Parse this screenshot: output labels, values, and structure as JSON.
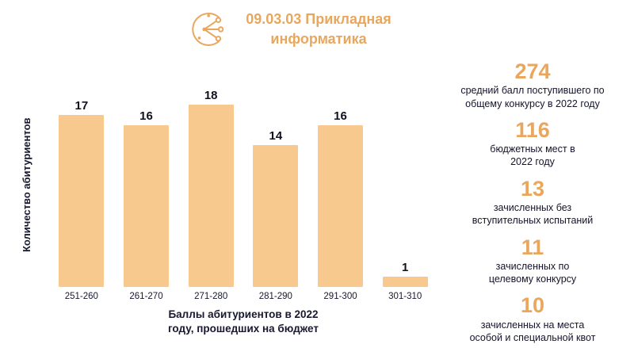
{
  "header": {
    "title": "09.03.03 Прикладная\nинформатика",
    "icon": "circuit-network-icon"
  },
  "chart_data": {
    "type": "bar",
    "categories": [
      "251-260",
      "261-270",
      "271-280",
      "281-290",
      "291-300",
      "301-310"
    ],
    "values": [
      17,
      16,
      18,
      14,
      16,
      1
    ],
    "xlabel": "Баллы абитуриентов в 2022\nгоду, прошедших на бюджет",
    "ylabel": "Количество абитуриентов",
    "ylim": [
      0,
      18
    ],
    "grid": false,
    "value_labels": true,
    "legend": "none",
    "bar_color": "#f8c98f"
  },
  "stats": [
    {
      "value": "274",
      "label": "средний балл поступившего по\nобщему конкурсу в 2022 году"
    },
    {
      "value": "116",
      "label": "бюджетных мест в\n2022 году"
    },
    {
      "value": "13",
      "label": "зачисленных без\nвступительных испытаний"
    },
    {
      "value": "11",
      "label": "зачисленных по\nцелевому конкурсу"
    },
    {
      "value": "10",
      "label": "зачисленных на места\nособой и специальной квот"
    }
  ],
  "colors": {
    "accent": "#e9a75e",
    "bar": "#f8c98f",
    "text": "#18182f"
  }
}
